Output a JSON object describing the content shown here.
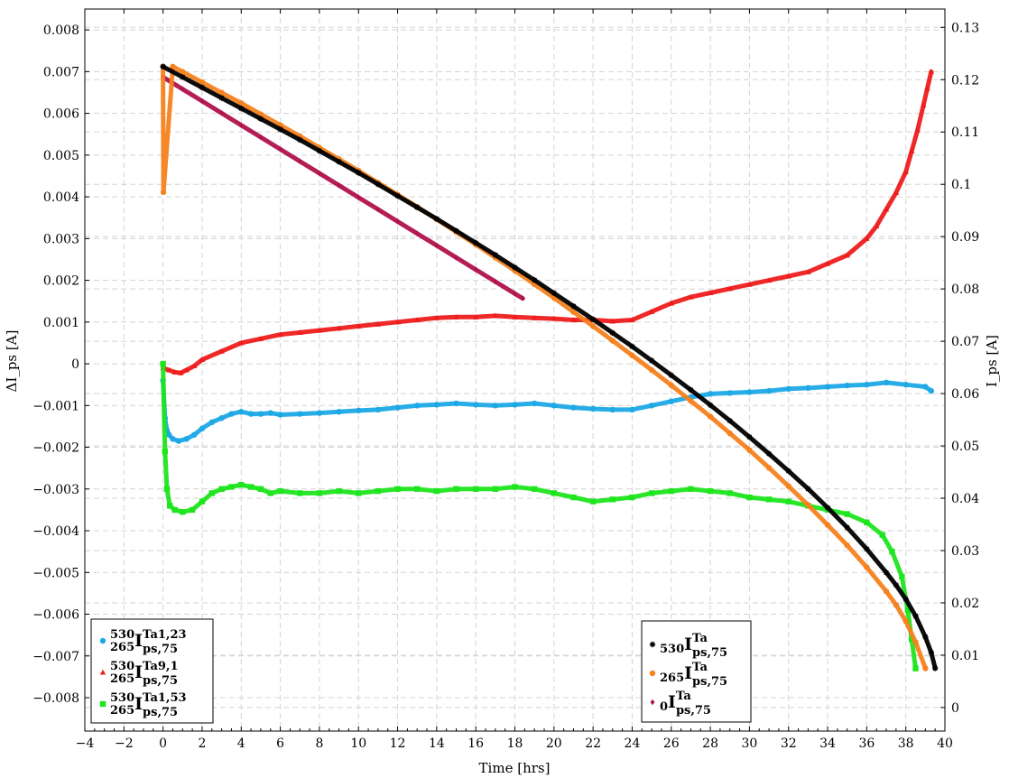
{
  "chart_data": {
    "type": "scatter",
    "title": "",
    "xlabel": "Time [hrs]",
    "ylabel_left": "ΔI_ps [A]",
    "ylabel_right": "I_ps [A]",
    "xlim": [
      -4,
      40
    ],
    "ylim_left": [
      -0.0088,
      0.0085
    ],
    "ylim_right": [
      -0.0045,
      0.1335
    ],
    "x_ticks": [
      -4,
      -2,
      0,
      2,
      4,
      6,
      8,
      10,
      12,
      14,
      16,
      18,
      20,
      22,
      24,
      26,
      28,
      30,
      32,
      34,
      36,
      38,
      40
    ],
    "y_left_ticks": [
      0.008,
      0.007,
      0.006,
      0.005,
      0.004,
      0.003,
      0.002,
      0.001,
      0,
      -0.001,
      -0.002,
      -0.003,
      -0.004,
      -0.005,
      -0.006,
      -0.007,
      -0.008
    ],
    "y_left_tick_labels": [
      "0.008",
      "0.007",
      "0.006",
      "0.005",
      "0.004",
      "0.003",
      "0.002",
      "0.001",
      "0",
      "−0.001",
      "−0.002",
      "−0.003",
      "−0.004",
      "−0.005",
      "−0.006",
      "−0.007",
      "−0.008"
    ],
    "y_right_ticks": [
      0.13,
      0.12,
      0.11,
      0.1,
      0.09,
      0.08,
      0.07,
      0.06,
      0.05,
      0.04,
      0.03,
      0.02,
      0.01,
      0
    ],
    "y_right_tick_labels": [
      "0.13",
      "0.12",
      "0.11",
      "0.1",
      "0.09",
      "0.08",
      "0.07",
      "0.06",
      "0.05",
      "0.04",
      "0.03",
      "0.02",
      "0.01",
      "0"
    ],
    "grid": true,
    "legend_left": {
      "placement": "bottom-left",
      "entries": [
        {
          "sup_pre": "530",
          "sub_pre": "265",
          "main": "I",
          "sup": "Ta1,23",
          "sub": "ps,75",
          "series": "ta1_23"
        },
        {
          "sup_pre": "530",
          "sub_pre": "265",
          "main": "I",
          "sup": "Ta9,1",
          "sub": "ps,75",
          "series": "ta9_1"
        },
        {
          "sup_pre": "530",
          "sub_pre": "265",
          "main": "I",
          "sup": "Ta1,53",
          "sub": "ps,75",
          "series": "ta1_53"
        }
      ]
    },
    "legend_right": {
      "placement": "bottom-right",
      "entries": [
        {
          "sub_pre": "530",
          "main": "I",
          "sup": "Ta",
          "sub": "ps,75",
          "series": "i530"
        },
        {
          "sub_pre": "265",
          "main": "I",
          "sup": "Ta",
          "sub": "ps,75",
          "series": "i265"
        },
        {
          "sub_pre": "0",
          "main": "I",
          "sup": "Ta",
          "sub": "ps,75",
          "series": "i0"
        }
      ]
    },
    "series": [
      {
        "id": "ta1_23",
        "axis": "left",
        "color": "#1ea9e6",
        "marker": "circle",
        "x": [
          0.0,
          0.1,
          0.2,
          0.3,
          0.5,
          0.8,
          1.2,
          1.6,
          2.0,
          2.5,
          3.0,
          3.5,
          4.0,
          4.5,
          5.0,
          5.5,
          6.0,
          7.0,
          8.0,
          9.0,
          10.0,
          11.0,
          12.0,
          13.0,
          14.0,
          15.0,
          16.0,
          17.0,
          18.0,
          19.0,
          20.0,
          21.0,
          22.0,
          23.0,
          24.0,
          25.0,
          26.0,
          27.0,
          28.0,
          29.0,
          30.0,
          31.0,
          32.0,
          33.0,
          34.0,
          35.0,
          36.0,
          37.0,
          38.0,
          39.0,
          39.3
        ],
        "y": [
          -0.0004,
          -0.0013,
          -0.0016,
          -0.0017,
          -0.0018,
          -0.00185,
          -0.0018,
          -0.0017,
          -0.00155,
          -0.0014,
          -0.0013,
          -0.0012,
          -0.00115,
          -0.0012,
          -0.0012,
          -0.00118,
          -0.00122,
          -0.0012,
          -0.00118,
          -0.00115,
          -0.00112,
          -0.0011,
          -0.00105,
          -0.001,
          -0.00098,
          -0.00095,
          -0.00098,
          -0.001,
          -0.00098,
          -0.00095,
          -0.001,
          -0.00105,
          -0.00108,
          -0.0011,
          -0.0011,
          -0.001,
          -0.0009,
          -0.0008,
          -0.00072,
          -0.0007,
          -0.00068,
          -0.00065,
          -0.0006,
          -0.00058,
          -0.00055,
          -0.00052,
          -0.0005,
          -0.00045,
          -0.0005,
          -0.00055,
          -0.00065
        ]
      },
      {
        "id": "ta9_1",
        "axis": "left",
        "color": "#ee1c1c",
        "marker": "triangle",
        "x": [
          0.0,
          0.3,
          0.6,
          0.9,
          1.2,
          1.6,
          2.0,
          3.0,
          4.0,
          5.0,
          6.0,
          7.0,
          8.0,
          9.0,
          10.0,
          11.0,
          12.0,
          13.0,
          14.0,
          15.0,
          16.0,
          17.0,
          18.0,
          19.0,
          20.0,
          21.0,
          22.0,
          23.0,
          24.0,
          25.0,
          26.0,
          27.0,
          28.0,
          29.0,
          30.0,
          31.0,
          32.0,
          33.0,
          34.0,
          35.0,
          36.0,
          36.5,
          37.0,
          37.5,
          38.0,
          38.3,
          38.6,
          38.9,
          39.1,
          39.3
        ],
        "y": [
          -0.0001,
          -0.00015,
          -0.0002,
          -0.00022,
          -0.00015,
          -5e-05,
          0.0001,
          0.0003,
          0.0005,
          0.0006,
          0.0007,
          0.00075,
          0.0008,
          0.00085,
          0.0009,
          0.00095,
          0.001,
          0.00105,
          0.0011,
          0.00112,
          0.00112,
          0.00115,
          0.00112,
          0.0011,
          0.00108,
          0.00105,
          0.00105,
          0.00102,
          0.00105,
          0.00125,
          0.00145,
          0.0016,
          0.0017,
          0.0018,
          0.0019,
          0.002,
          0.0021,
          0.0022,
          0.0024,
          0.0026,
          0.003,
          0.0033,
          0.0037,
          0.0041,
          0.0046,
          0.0051,
          0.0056,
          0.0062,
          0.0066,
          0.007
        ]
      },
      {
        "id": "ta1_53",
        "axis": "left",
        "color": "#1ee51e",
        "marker": "square",
        "x": [
          0.0,
          0.1,
          0.2,
          0.35,
          0.6,
          1.0,
          1.5,
          2.0,
          2.5,
          3.0,
          3.5,
          4.0,
          4.5,
          5.0,
          5.5,
          6.0,
          7.0,
          8.0,
          9.0,
          10.0,
          11.0,
          12.0,
          13.0,
          14.0,
          15.0,
          16.0,
          17.0,
          18.0,
          19.0,
          20.0,
          21.0,
          22.0,
          23.0,
          24.0,
          25.0,
          26.0,
          27.0,
          28.0,
          29.0,
          30.0,
          31.0,
          32.0,
          33.0,
          34.0,
          35.0,
          36.0,
          36.8,
          37.3,
          37.8,
          38.1,
          38.3,
          38.5
        ],
        "y": [
          0.0,
          -0.0021,
          -0.003,
          -0.0034,
          -0.0035,
          -0.00355,
          -0.0035,
          -0.0033,
          -0.0031,
          -0.003,
          -0.00295,
          -0.0029,
          -0.00295,
          -0.003,
          -0.0031,
          -0.00305,
          -0.0031,
          -0.0031,
          -0.00305,
          -0.0031,
          -0.00305,
          -0.003,
          -0.003,
          -0.00305,
          -0.003,
          -0.003,
          -0.003,
          -0.00295,
          -0.003,
          -0.0031,
          -0.0032,
          -0.0033,
          -0.00325,
          -0.0032,
          -0.0031,
          -0.00305,
          -0.003,
          -0.00305,
          -0.0031,
          -0.0032,
          -0.00325,
          -0.0033,
          -0.0034,
          -0.0035,
          -0.0036,
          -0.0038,
          -0.0041,
          -0.0045,
          -0.0051,
          -0.0059,
          -0.0066,
          -0.0073
        ]
      },
      {
        "id": "i530",
        "axis": "right",
        "color": "#000000",
        "marker": "star",
        "x": [
          0.0,
          1.0,
          2.0,
          3.0,
          4.0,
          5.0,
          6.0,
          7.0,
          8.0,
          9.0,
          10.0,
          11.0,
          12.0,
          13.0,
          14.0,
          15.0,
          16.0,
          17.0,
          18.0,
          19.0,
          20.0,
          21.0,
          22.0,
          23.0,
          24.0,
          25.0,
          26.0,
          27.0,
          28.0,
          29.0,
          30.0,
          31.0,
          32.0,
          33.0,
          34.0,
          35.0,
          36.0,
          37.0,
          37.5,
          38.0,
          38.5,
          39.0,
          39.3,
          39.5
        ],
        "y": [
          0.1225,
          0.1205,
          0.1185,
          0.1165,
          0.1145,
          0.1125,
          0.1105,
          0.1085,
          0.1064,
          0.1043,
          0.1022,
          0.1,
          0.0978,
          0.0956,
          0.0934,
          0.0911,
          0.0888,
          0.0865,
          0.0841,
          0.0817,
          0.0792,
          0.0767,
          0.0742,
          0.0716,
          0.069,
          0.0663,
          0.0635,
          0.0607,
          0.0578,
          0.0548,
          0.0517,
          0.0485,
          0.0452,
          0.0418,
          0.0382,
          0.0344,
          0.0303,
          0.0258,
          0.0234,
          0.0207,
          0.0175,
          0.0135,
          0.0105,
          0.0075
        ]
      },
      {
        "id": "i265",
        "axis": "right",
        "color": "#f5821f",
        "marker": "circle",
        "x": [
          0.0,
          0.02,
          0.5,
          1.0,
          2.0,
          3.0,
          4.0,
          5.0,
          6.0,
          7.0,
          8.0,
          9.0,
          10.0,
          11.0,
          12.0,
          13.0,
          14.0,
          15.0,
          16.0,
          17.0,
          18.0,
          19.0,
          20.0,
          21.0,
          22.0,
          23.0,
          24.0,
          25.0,
          26.0,
          27.0,
          28.0,
          29.0,
          30.0,
          31.0,
          32.0,
          33.0,
          34.0,
          35.0,
          36.0,
          37.0,
          37.5,
          38.0,
          38.5,
          39.0
        ],
        "y": [
          0.1225,
          0.0985,
          0.1225,
          0.1215,
          0.1195,
          0.1175,
          0.1155,
          0.1134,
          0.1113,
          0.1092,
          0.107,
          0.1048,
          0.1026,
          0.1003,
          0.098,
          0.0957,
          0.0933,
          0.0909,
          0.0885,
          0.086,
          0.0835,
          0.0809,
          0.0783,
          0.0756,
          0.0729,
          0.0701,
          0.0673,
          0.0645,
          0.0616,
          0.0586,
          0.0556,
          0.0524,
          0.0492,
          0.0458,
          0.0423,
          0.0387,
          0.0349,
          0.031,
          0.0268,
          0.0222,
          0.0196,
          0.0165,
          0.0125,
          0.0075
        ]
      },
      {
        "id": "i0",
        "axis": "right",
        "color": "#b0124c",
        "marker": "diamond",
        "x": [
          0.0,
          1.0,
          2.0,
          3.0,
          4.0,
          5.0,
          6.0,
          7.0,
          8.0,
          9.0,
          10.0,
          11.0,
          12.0,
          13.0,
          14.0,
          15.0,
          16.0,
          17.0,
          18.0,
          18.4
        ],
        "y": [
          0.1205,
          0.1182,
          0.1159,
          0.1136,
          0.1113,
          0.109,
          0.1067,
          0.1044,
          0.1021,
          0.0998,
          0.0975,
          0.0952,
          0.0929,
          0.0906,
          0.0883,
          0.086,
          0.0837,
          0.0814,
          0.0791,
          0.0782
        ]
      }
    ]
  }
}
